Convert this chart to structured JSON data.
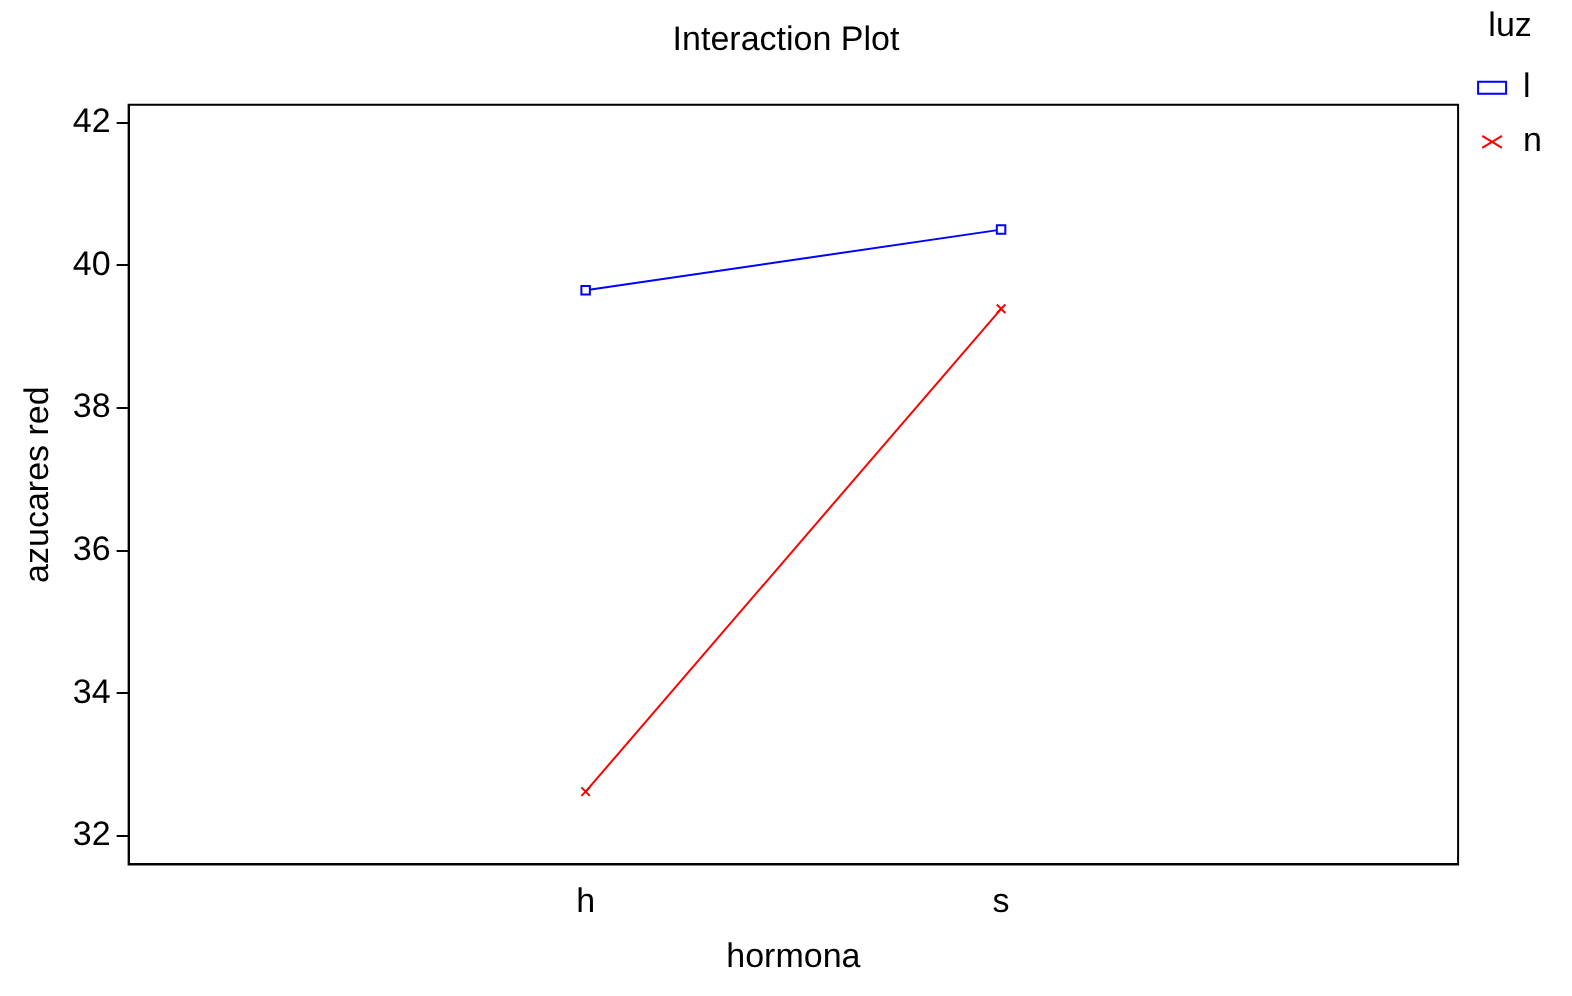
{
  "chart_data": {
    "type": "line",
    "title": "Interaction Plot",
    "xlabel": "hormona",
    "ylabel": "azucares red",
    "legend_title": "luz",
    "legend": "top right",
    "grid": false,
    "categories": [
      "h",
      "s"
    ],
    "series": [
      {
        "name": "l",
        "color": "#0000ff",
        "marker": "square",
        "values": [
          39.65,
          40.5
        ]
      },
      {
        "name": "n",
        "color": "#ff0000",
        "marker": "cross",
        "values": [
          32.62,
          39.39
        ]
      }
    ],
    "ylim": [
      31.6,
      42.25
    ],
    "yticks": [
      32,
      34,
      36,
      38,
      40,
      42
    ]
  }
}
